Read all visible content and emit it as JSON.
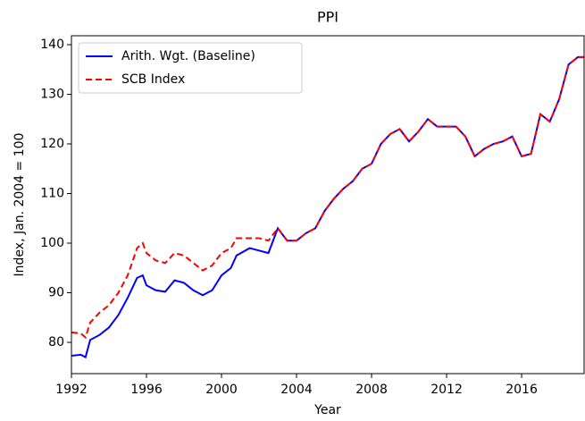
{
  "chart_data": {
    "type": "line",
    "title": "PPI",
    "xlabel": "Year",
    "ylabel": "Index, Jan. 2004 = 100",
    "x": [
      1992.0,
      1992.5,
      1992.75,
      1993.0,
      1993.5,
      1994.0,
      1994.5,
      1995.0,
      1995.5,
      1995.8,
      1996.0,
      1996.5,
      1997.0,
      1997.5,
      1998.0,
      1998.5,
      1999.0,
      1999.5,
      2000.0,
      2000.5,
      2000.8,
      2001.5,
      2002.0,
      2002.5,
      2003.0,
      2003.5,
      2004.0,
      2004.5,
      2005.0,
      2005.5,
      2006.0,
      2006.5,
      2007.0,
      2007.5,
      2008.0,
      2008.5,
      2009.0,
      2009.5,
      2010.0,
      2010.5,
      2011.0,
      2011.5,
      2012.0,
      2012.5,
      2013.0,
      2013.5,
      2014.0,
      2014.5,
      2015.0,
      2015.5,
      2016.0,
      2016.5,
      2017.0,
      2017.5,
      2018.0,
      2018.5,
      2019.0,
      2019.33
    ],
    "series": [
      {
        "name": "Arith. Wgt. (Baseline)",
        "color": "#0000ff",
        "dash": false,
        "values": [
          77.3,
          77.5,
          77,
          80.5,
          81.5,
          83,
          85.5,
          89,
          93,
          93.5,
          91.5,
          90.5,
          90.2,
          92.5,
          92,
          90.5,
          89.5,
          90.5,
          93.5,
          95,
          97.5,
          99,
          98.5,
          98,
          103,
          100.5,
          100.5,
          102,
          103,
          106.5,
          109,
          111,
          112.5,
          115,
          116,
          120,
          122,
          123,
          120.5,
          122.5,
          125,
          123.5,
          123.5,
          123.5,
          121.5,
          117.5,
          119,
          120,
          120.5,
          121.5,
          117.5,
          118,
          126,
          124.5,
          129,
          136,
          137.5,
          137.5
        ]
      },
      {
        "name": "SCB Index",
        "color": "#ff0000",
        "dash": true,
        "values": [
          82,
          81.8,
          81,
          84,
          86,
          87.5,
          90,
          93.5,
          99,
          100,
          98,
          96.5,
          96,
          98,
          97.5,
          96,
          94.5,
          95.5,
          98,
          99,
          101,
          101,
          101,
          100.5,
          103,
          100.5,
          100.5,
          102,
          103,
          106.5,
          109,
          111,
          112.5,
          115,
          116,
          120,
          122,
          123,
          120.5,
          122.5,
          125,
          123.5,
          123.5,
          123.5,
          121.5,
          117.5,
          119,
          120,
          120.5,
          121.5,
          117.5,
          118,
          126,
          124.5,
          129,
          136,
          137.5,
          137.5
        ]
      }
    ],
    "xlim": [
      1992,
      2019.33
    ],
    "xticks": [
      1992,
      1996,
      2000,
      2004,
      2008,
      2012,
      2016
    ],
    "ylim": [
      73.7,
      141.8
    ],
    "yticks": [
      80,
      90,
      100,
      110,
      120,
      130,
      140
    ],
    "legend": "upper left"
  }
}
